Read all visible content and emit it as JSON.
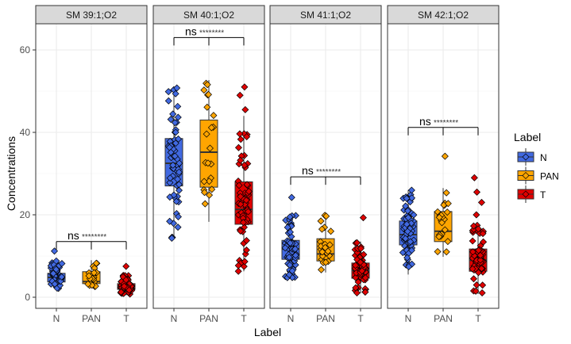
{
  "chart_data": {
    "type": "box",
    "xlabel": "Label",
    "ylabel": "Concentrations",
    "ylim": [
      -2.7,
      66.6
    ],
    "yticks": [
      0,
      20,
      40,
      60
    ],
    "grid": true,
    "legend": {
      "title": "Label",
      "position": "right",
      "entries": [
        {
          "name": "N",
          "color": "#4169E1"
        },
        {
          "name": "PAN",
          "color": "#FFA500"
        },
        {
          "name": "T",
          "color": "#E00000"
        }
      ]
    },
    "categories": [
      "N",
      "PAN",
      "T"
    ],
    "panels": [
      {
        "title": "SM 39:1;O2",
        "annotation": {
          "label": "ns",
          "stars": "********",
          "y": 13.5
        },
        "groups": [
          {
            "name": "N",
            "min": 2.0,
            "q1": 3.7,
            "median": 4.8,
            "q3": 5.8,
            "max": 8.8,
            "outliers": [
              11.2
            ]
          },
          {
            "name": "PAN",
            "min": 2.3,
            "q1": 3.3,
            "median": 3.8,
            "q3": 6.2,
            "max": 9.0,
            "outliers": []
          },
          {
            "name": "T",
            "min": 0.5,
            "q1": 1.9,
            "median": 2.7,
            "q3": 3.3,
            "max": 5.8,
            "outliers": [
              7.5
            ]
          }
        ]
      },
      {
        "title": "SM 40:1;O2",
        "annotation": {
          "label": "ns",
          "stars": "********",
          "y": 63.0
        },
        "groups": [
          {
            "name": "N",
            "min": 14.2,
            "q1": 27.0,
            "median": 32.5,
            "q3": 38.5,
            "max": 50.8,
            "outliers": []
          },
          {
            "name": "PAN",
            "min": 18.3,
            "q1": 26.7,
            "median": 35.2,
            "q3": 43.0,
            "max": 52.7,
            "outliers": []
          },
          {
            "name": "T",
            "min": 6.3,
            "q1": 17.7,
            "median": 21.3,
            "q3": 28.0,
            "max": 44.0,
            "outliers": [
              45.5,
              49.0,
              51.0
            ]
          }
        ]
      },
      {
        "title": "SM 41:1;O2",
        "annotation": {
          "label": "ns",
          "stars": "********",
          "y": 29.2
        },
        "groups": [
          {
            "name": "N",
            "min": 4.5,
            "q1": 9.2,
            "median": 11.7,
            "q3": 13.8,
            "max": 20.0,
            "outliers": [
              24.2
            ]
          },
          {
            "name": "PAN",
            "min": 6.0,
            "q1": 8.8,
            "median": 10.5,
            "q3": 14.2,
            "max": 20.5,
            "outliers": []
          },
          {
            "name": "T",
            "min": 1.0,
            "q1": 4.6,
            "median": 6.5,
            "q3": 8.3,
            "max": 13.5,
            "outliers": [
              19.3
            ]
          }
        ]
      },
      {
        "title": "SM 42:1;O2",
        "annotation": {
          "label": "ns",
          "stars": "********",
          "y": 41.2
        },
        "groups": [
          {
            "name": "N",
            "min": 5.5,
            "q1": 12.7,
            "median": 15.2,
            "q3": 18.5,
            "max": 26.0,
            "outliers": []
          },
          {
            "name": "PAN",
            "min": 9.8,
            "q1": 13.5,
            "median": 16.0,
            "q3": 20.8,
            "max": 26.5,
            "outliers": [
              34.2
            ]
          },
          {
            "name": "T",
            "min": 0.8,
            "q1": 6.3,
            "median": 9.0,
            "q3": 11.7,
            "max": 17.5,
            "outliers": [
              20.0,
              23.0,
              25.5,
              29.0
            ]
          }
        ]
      }
    ]
  }
}
